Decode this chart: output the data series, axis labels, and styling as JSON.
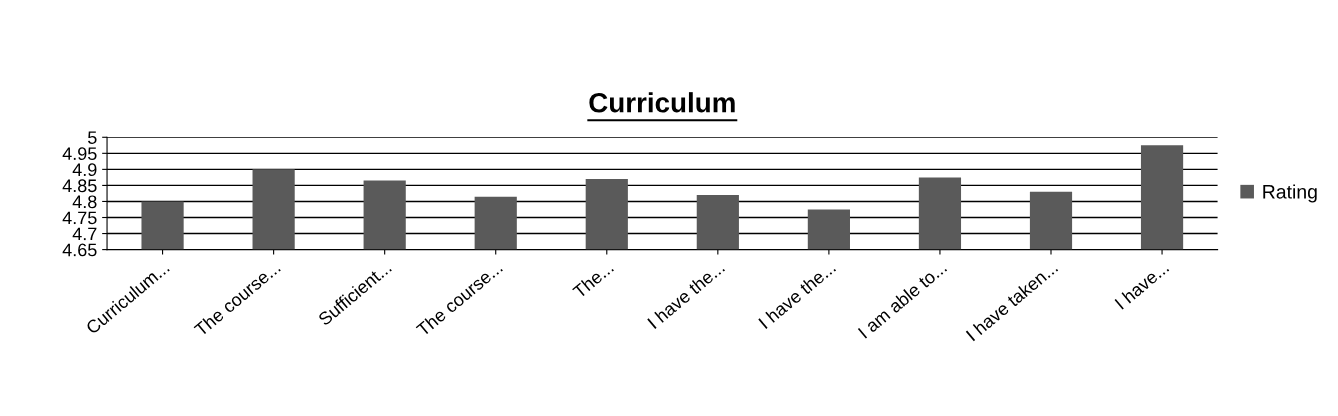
{
  "chart_data": {
    "type": "bar",
    "title": "Curriculum",
    "categories": [
      "Curriculum...",
      "The course...",
      "Sufficient...",
      "The course...",
      "The...",
      "I have the...",
      "I have the...",
      "I am able to...",
      "I have taken...",
      "I have..."
    ],
    "series": [
      {
        "name": "Rating",
        "color": "#5a5a5a",
        "values": [
          4.8,
          4.9,
          4.865,
          4.815,
          4.87,
          4.82,
          4.775,
          4.875,
          4.83,
          4.975
        ]
      }
    ],
    "ylim": [
      4.65,
      5
    ],
    "yticks": [
      4.65,
      4.7,
      4.75,
      4.8,
      4.85,
      4.9,
      4.95,
      5
    ],
    "grid": "y",
    "legend": "right"
  }
}
